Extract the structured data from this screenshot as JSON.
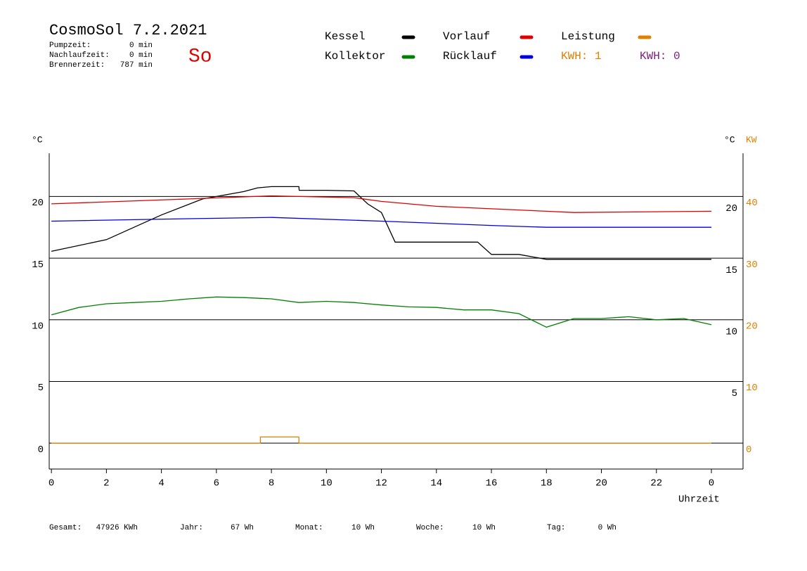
{
  "chart_data": {
    "type": "line",
    "title": "CosmoSol 7.2.2021",
    "info": [
      [
        "Pumpzeit:",
        "0 min"
      ],
      [
        "Nachlaufzeit:",
        "0 min"
      ],
      [
        "Brennerzeit:",
        "787 min"
      ]
    ],
    "day": "So",
    "kwh_labels": [
      {
        "text": "KWH: 1",
        "color": "#e08000"
      },
      {
        "text": "KWH: 0",
        "color": "#802080"
      }
    ],
    "y_unit": "°C",
    "y2_unit_left": "°C",
    "y2_unit": "KW",
    "x_label": "Uhrzeit",
    "xlim": [
      -0.08,
      25.15
    ],
    "xticks": [
      0,
      2,
      4,
      6,
      8,
      10,
      12,
      14,
      16,
      18,
      20,
      22,
      {
        "value": 24,
        "label": "0"
      }
    ],
    "ylim": [
      -2.1,
      23.5
    ],
    "yticks": [
      0,
      5,
      10,
      15,
      20
    ],
    "right_yticks": [
      5,
      10,
      15,
      20
    ],
    "y2lim": [
      -4.2,
      47
    ],
    "y2ticks": [
      0,
      10,
      20,
      30,
      40
    ],
    "grid": true,
    "series": [
      {
        "name": "Kessel",
        "color": "#000000",
        "x": [
          0,
          2,
          4,
          5.5,
          6,
          7,
          7.5,
          8,
          9,
          9.01,
          10,
          11,
          11.5,
          12,
          12.5,
          13,
          15.5,
          16,
          17,
          18,
          19,
          24
        ],
        "values": [
          15.55,
          16.5,
          18.5,
          19.8,
          20.0,
          20.4,
          20.7,
          20.8,
          20.8,
          20.5,
          20.5,
          20.45,
          19.4,
          18.7,
          16.3,
          16.3,
          16.3,
          15.3,
          15.3,
          14.9,
          14.9,
          14.9
        ]
      },
      {
        "name": "Vorlauf",
        "color": "#e00000",
        "x": [
          0,
          5,
          8,
          11,
          12,
          14,
          16,
          18,
          19,
          24
        ],
        "values": [
          19.4,
          19.8,
          20.05,
          19.9,
          19.6,
          19.2,
          19.0,
          18.8,
          18.7,
          18.8
        ]
      },
      {
        "name": "Leistung",
        "color": "#e08000",
        "axis": "y2",
        "x": [
          0,
          7.6,
          7.6,
          9.0,
          9.0,
          24
        ],
        "values": [
          0,
          0,
          1,
          1,
          0,
          0
        ]
      },
      {
        "name": "Kollektor",
        "color": "#008000",
        "x": [
          0,
          1,
          2,
          3,
          4,
          5,
          6,
          7,
          8,
          9,
          10,
          11,
          12,
          13,
          14,
          15,
          16,
          17,
          18,
          19,
          20,
          21,
          22,
          23,
          24
        ],
        "values": [
          10.4,
          11.0,
          11.3,
          11.4,
          11.5,
          11.7,
          11.85,
          11.8,
          11.7,
          11.4,
          11.5,
          11.4,
          11.2,
          11.05,
          11.0,
          10.8,
          10.8,
          10.5,
          9.4,
          10.1,
          10.1,
          10.25,
          10.0,
          10.1,
          9.6
        ]
      },
      {
        "name": "Rücklauf",
        "color": "#0000e0",
        "x": [
          0,
          5,
          8,
          12,
          16,
          18,
          24
        ],
        "values": [
          18.0,
          18.2,
          18.3,
          18.0,
          17.65,
          17.5,
          17.5
        ]
      }
    ],
    "totals": [
      [
        "Gesamt:",
        "47926 KWh"
      ],
      [
        "Jahr:",
        "67 Wh"
      ],
      [
        "Monat:",
        "10 Wh"
      ],
      [
        "Woche:",
        "10 Wh"
      ],
      [
        "Tag:",
        "0 Wh"
      ]
    ]
  }
}
